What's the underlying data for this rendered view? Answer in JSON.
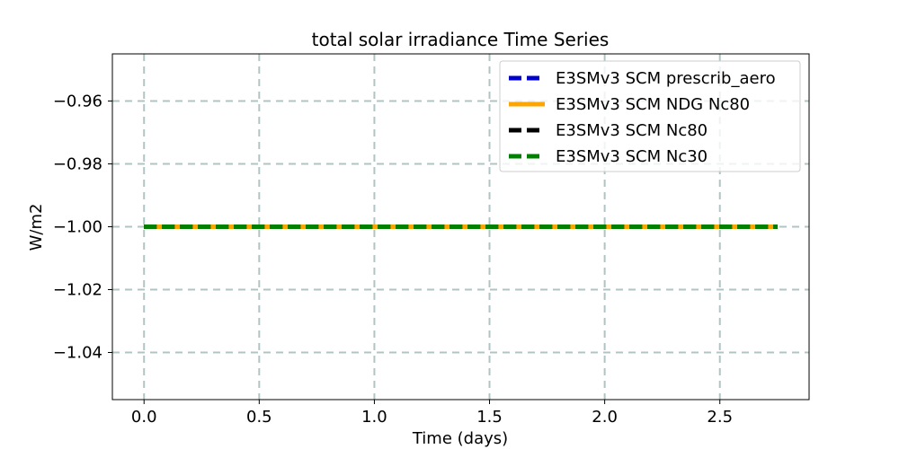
{
  "chart_data": {
    "type": "line",
    "title": "total solar irradiance Time Series",
    "xlabel": "Time (days)",
    "ylabel": "W/m2",
    "xlim": [
      -0.1375,
      2.8875
    ],
    "ylim": [
      -1.055,
      -0.945
    ],
    "xticks": [
      0.0,
      0.5,
      1.0,
      1.5,
      2.0,
      2.5
    ],
    "xtick_labels": [
      "0.0",
      "0.5",
      "1.0",
      "1.5",
      "2.0",
      "2.5"
    ],
    "yticks": [
      -1.04,
      -1.02,
      -1.0,
      -0.98,
      -0.96
    ],
    "ytick_labels": [
      "−1.04",
      "−1.02",
      "−1.00",
      "−0.98",
      "−0.96"
    ],
    "grid": true,
    "legend_position": "top-right",
    "series": [
      {
        "name": "E3SMv3 SCM prescrib_aero",
        "color": "#0000cd",
        "style": "dashed",
        "x": [
          0.0,
          2.75
        ],
        "y": [
          -1.0,
          -1.0
        ]
      },
      {
        "name": "E3SMv3 SCM NDG Nc80",
        "color": "#ffa500",
        "style": "solid",
        "x": [
          0.0,
          2.75
        ],
        "y": [
          -1.0,
          -1.0
        ]
      },
      {
        "name": "E3SMv3 SCM Nc80",
        "color": "#000000",
        "style": "dashed",
        "x": [
          0.0,
          2.75
        ],
        "y": [
          -1.0,
          -1.0
        ]
      },
      {
        "name": "E3SMv3 SCM Nc30",
        "color": "#008000",
        "style": "dashed",
        "x": [
          0.0,
          2.75
        ],
        "y": [
          -1.0,
          -1.0
        ]
      }
    ]
  }
}
